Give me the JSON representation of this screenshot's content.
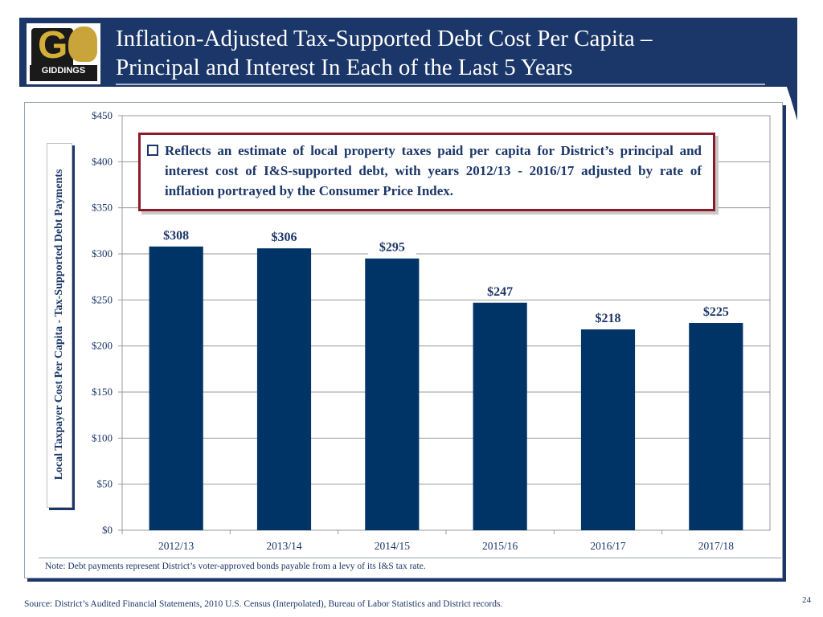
{
  "slide": {
    "title_line1": "Inflation-Adjusted Tax-Supported Debt Cost Per Capita –",
    "title_line2": "Principal and Interest In Each of  the Last 5 Years",
    "logo_text": "GIDDINGS",
    "callout": "Reflects an estimate of local property taxes paid per capita for District’s principal and interest cost of I&S-supported debt, with years 2012/13 - 2016/17 adjusted by rate of inflation portrayed by the Consumer Price Index.",
    "note": "Note: Debt payments represent District’s voter-approved bonds payable from a levy of its I&S tax rate.",
    "source": "Source: District’s Audited Financial Statements, 2010 U.S. Census (Interpolated), Bureau of Labor Statistics and District records.",
    "page_number": "24",
    "colors": {
      "header": "#1b3668",
      "bar": "#003366",
      "callout_border": "#8b1a2b",
      "text": "#1b3668"
    }
  },
  "chart_data": {
    "type": "bar",
    "categories": [
      "2012/13",
      "2013/14",
      "2014/15",
      "2015/16",
      "2016/17",
      "2017/18"
    ],
    "values": [
      308,
      306,
      295,
      247,
      218,
      225
    ],
    "data_labels": [
      "$308",
      "$306",
      "$295",
      "$247",
      "$218",
      "$225"
    ],
    "ylabel": "Local Taxpayer Cost Per Capita - Tax-Supported Debt Payments",
    "ylim": [
      0,
      450
    ],
    "yticks": [
      0,
      50,
      100,
      150,
      200,
      250,
      300,
      350,
      400,
      450
    ],
    "ytick_labels": [
      "$0",
      "$50",
      "$100",
      "$150",
      "$200",
      "$250",
      "$300",
      "$350",
      "$400",
      "$450"
    ],
    "grid": true
  }
}
